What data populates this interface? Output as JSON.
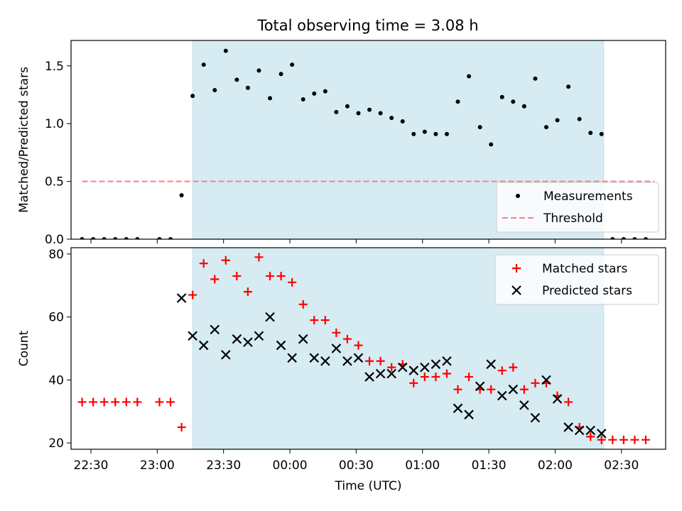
{
  "figure": {
    "title": "Total observing time = 3.08 h"
  },
  "chart_data": [
    {
      "type": "scatter",
      "ylabel": "Matched/Predicted stars",
      "xlabel": "",
      "xlim": [
        "22:21",
        "02:50"
      ],
      "ylim": [
        0,
        1.72
      ],
      "yticks": [
        "0.0",
        "0.5",
        "1.0",
        "1.5"
      ],
      "grid": false,
      "legend_position": "lower-right",
      "observing_window": {
        "start": "23:16",
        "end": "02:22"
      },
      "series": [
        {
          "name": "Measurements",
          "marker": "dot",
          "color": "#000000",
          "points": [
            [
              "22:26",
              0
            ],
            [
              "22:31",
              0
            ],
            [
              "22:36",
              0
            ],
            [
              "22:41",
              0
            ],
            [
              "22:46",
              0
            ],
            [
              "22:51",
              0
            ],
            [
              "23:01",
              0
            ],
            [
              "23:06",
              0
            ],
            [
              "23:11",
              0.38
            ],
            [
              "23:16",
              1.24
            ],
            [
              "23:21",
              1.51
            ],
            [
              "23:26",
              1.29
            ],
            [
              "23:31",
              1.63
            ],
            [
              "23:36",
              1.38
            ],
            [
              "23:41",
              1.31
            ],
            [
              "23:46",
              1.46
            ],
            [
              "23:51",
              1.22
            ],
            [
              "23:56",
              1.43
            ],
            [
              "00:01",
              1.51
            ],
            [
              "00:06",
              1.21
            ],
            [
              "00:11",
              1.26
            ],
            [
              "00:16",
              1.28
            ],
            [
              "00:21",
              1.1
            ],
            [
              "00:26",
              1.15
            ],
            [
              "00:31",
              1.09
            ],
            [
              "00:36",
              1.12
            ],
            [
              "00:41",
              1.09
            ],
            [
              "00:46",
              1.05
            ],
            [
              "00:51",
              1.02
            ],
            [
              "00:56",
              0.91
            ],
            [
              "01:01",
              0.93
            ],
            [
              "01:06",
              0.91
            ],
            [
              "01:11",
              0.91
            ],
            [
              "01:16",
              1.19
            ],
            [
              "01:21",
              1.41
            ],
            [
              "01:26",
              0.97
            ],
            [
              "01:31",
              0.82
            ],
            [
              "01:36",
              1.23
            ],
            [
              "01:41",
              1.19
            ],
            [
              "01:46",
              1.15
            ],
            [
              "01:51",
              1.39
            ],
            [
              "01:56",
              0.97
            ],
            [
              "02:01",
              1.03
            ],
            [
              "02:06",
              1.32
            ],
            [
              "02:11",
              1.04
            ],
            [
              "02:16",
              0.92
            ],
            [
              "02:21",
              0.91
            ],
            [
              "02:26",
              0
            ],
            [
              "02:31",
              0
            ],
            [
              "02:36",
              0
            ],
            [
              "02:41",
              0
            ]
          ]
        },
        {
          "name": "Threshold",
          "marker": "dashed-line",
          "color": "#ff7f7f",
          "points": [
            [
              "22:26",
              0.5
            ],
            [
              "02:45",
              0.5
            ]
          ]
        }
      ]
    },
    {
      "type": "scatter",
      "ylabel": "Count",
      "xlabel": "Time (UTC)",
      "xlim": [
        "22:21",
        "02:50"
      ],
      "ylim": [
        18,
        82
      ],
      "yticks": [
        "20",
        "40",
        "60",
        "80"
      ],
      "xticks": [
        "22:30",
        "23:00",
        "23:30",
        "00:00",
        "00:30",
        "01:00",
        "01:30",
        "02:00",
        "02:30"
      ],
      "grid": false,
      "legend_position": "upper-right",
      "observing_window": {
        "start": "23:16",
        "end": "02:22"
      },
      "series": [
        {
          "name": "Matched stars",
          "marker": "plus",
          "color": "#ff0000",
          "points": [
            [
              "22:26",
              33
            ],
            [
              "22:31",
              33
            ],
            [
              "22:36",
              33
            ],
            [
              "22:41",
              33
            ],
            [
              "22:46",
              33
            ],
            [
              "22:51",
              33
            ],
            [
              "23:01",
              33
            ],
            [
              "23:06",
              33
            ],
            [
              "23:11",
              25
            ],
            [
              "23:16",
              67
            ],
            [
              "23:21",
              77
            ],
            [
              "23:26",
              72
            ],
            [
              "23:31",
              78
            ],
            [
              "23:36",
              73
            ],
            [
              "23:41",
              68
            ],
            [
              "23:46",
              79
            ],
            [
              "23:51",
              73
            ],
            [
              "23:56",
              73
            ],
            [
              "00:01",
              71
            ],
            [
              "00:06",
              64
            ],
            [
              "00:11",
              59
            ],
            [
              "00:16",
              59
            ],
            [
              "00:21",
              55
            ],
            [
              "00:26",
              53
            ],
            [
              "00:31",
              51
            ],
            [
              "00:36",
              46
            ],
            [
              "00:41",
              46
            ],
            [
              "00:46",
              44
            ],
            [
              "00:51",
              45
            ],
            [
              "00:56",
              39
            ],
            [
              "01:01",
              41
            ],
            [
              "01:06",
              41
            ],
            [
              "01:11",
              42
            ],
            [
              "01:16",
              37
            ],
            [
              "01:21",
              41
            ],
            [
              "01:26",
              37
            ],
            [
              "01:31",
              37
            ],
            [
              "01:36",
              43
            ],
            [
              "01:41",
              44
            ],
            [
              "01:46",
              37
            ],
            [
              "01:51",
              39
            ],
            [
              "01:56",
              39
            ],
            [
              "02:01",
              35
            ],
            [
              "02:06",
              33
            ],
            [
              "02:11",
              25
            ],
            [
              "02:16",
              22
            ],
            [
              "02:21",
              21
            ],
            [
              "02:26",
              21
            ],
            [
              "02:31",
              21
            ],
            [
              "02:36",
              21
            ],
            [
              "02:41",
              21
            ]
          ]
        },
        {
          "name": "Predicted stars",
          "marker": "cross",
          "color": "#000000",
          "points": [
            [
              "23:11",
              66
            ],
            [
              "23:16",
              54
            ],
            [
              "23:21",
              51
            ],
            [
              "23:26",
              56
            ],
            [
              "23:31",
              48
            ],
            [
              "23:36",
              53
            ],
            [
              "23:41",
              52
            ],
            [
              "23:46",
              54
            ],
            [
              "23:51",
              60
            ],
            [
              "23:56",
              51
            ],
            [
              "00:01",
              47
            ],
            [
              "00:06",
              53
            ],
            [
              "00:11",
              47
            ],
            [
              "00:16",
              46
            ],
            [
              "00:21",
              50
            ],
            [
              "00:26",
              46
            ],
            [
              "00:31",
              47
            ],
            [
              "00:36",
              41
            ],
            [
              "00:41",
              42
            ],
            [
              "00:46",
              42
            ],
            [
              "00:51",
              44
            ],
            [
              "00:56",
              43
            ],
            [
              "01:01",
              44
            ],
            [
              "01:06",
              45
            ],
            [
              "01:11",
              46
            ],
            [
              "01:16",
              31
            ],
            [
              "01:21",
              29
            ],
            [
              "01:26",
              38
            ],
            [
              "01:31",
              45
            ],
            [
              "01:36",
              35
            ],
            [
              "01:41",
              37
            ],
            [
              "01:46",
              32
            ],
            [
              "01:51",
              28
            ],
            [
              "01:56",
              40
            ],
            [
              "02:01",
              34
            ],
            [
              "02:06",
              25
            ],
            [
              "02:11",
              24
            ],
            [
              "02:16",
              24
            ],
            [
              "02:21",
              23
            ]
          ]
        }
      ]
    }
  ]
}
